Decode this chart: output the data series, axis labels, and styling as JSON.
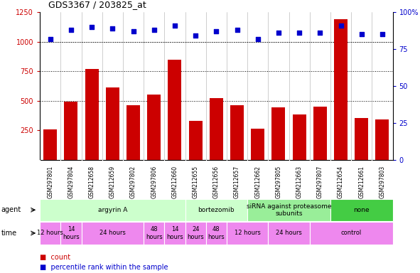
{
  "title": "GDS3367 / 203825_at",
  "samples": [
    "GSM297801",
    "GSM297804",
    "GSM212658",
    "GSM212659",
    "GSM297802",
    "GSM297806",
    "GSM212660",
    "GSM212655",
    "GSM212656",
    "GSM212657",
    "GSM212662",
    "GSM297805",
    "GSM212663",
    "GSM297807",
    "GSM212654",
    "GSM212661",
    "GSM297803"
  ],
  "counts": [
    255,
    490,
    770,
    615,
    465,
    555,
    845,
    330,
    520,
    460,
    265,
    445,
    385,
    450,
    1190,
    355,
    340
  ],
  "percentiles": [
    82,
    88,
    90,
    89,
    87,
    88,
    91,
    84,
    87,
    88,
    82,
    86,
    86,
    86,
    91,
    85,
    85
  ],
  "bar_color": "#cc0000",
  "dot_color": "#0000cc",
  "ylim_left": [
    0,
    1250
  ],
  "ylim_right": [
    0,
    100
  ],
  "yticks_left": [
    250,
    500,
    750,
    1000,
    1250
  ],
  "yticks_right": [
    0,
    25,
    50,
    75,
    100
  ],
  "grid_values": [
    500,
    750,
    1000
  ],
  "agent_groups": [
    {
      "label": "argyrin A",
      "start": 0,
      "end": 7,
      "color": "#ccffcc"
    },
    {
      "label": "bortezomib",
      "start": 7,
      "end": 10,
      "color": "#ccffcc"
    },
    {
      "label": "siRNA against proteasome\nsubunits",
      "start": 10,
      "end": 14,
      "color": "#99ee99"
    },
    {
      "label": "none",
      "start": 14,
      "end": 17,
      "color": "#44cc44"
    }
  ],
  "time_groups": [
    {
      "label": "12 hours",
      "start": 0,
      "end": 1,
      "color": "#ee88ee"
    },
    {
      "label": "14\nhours",
      "start": 1,
      "end": 2,
      "color": "#ee88ee"
    },
    {
      "label": "24 hours",
      "start": 2,
      "end": 5,
      "color": "#ee88ee"
    },
    {
      "label": "48\nhours",
      "start": 5,
      "end": 6,
      "color": "#ee88ee"
    },
    {
      "label": "14\nhours",
      "start": 6,
      "end": 7,
      "color": "#ee88ee"
    },
    {
      "label": "24\nhours",
      "start": 7,
      "end": 8,
      "color": "#ee88ee"
    },
    {
      "label": "48\nhours",
      "start": 8,
      "end": 9,
      "color": "#ee88ee"
    },
    {
      "label": "12 hours",
      "start": 9,
      "end": 11,
      "color": "#ee88ee"
    },
    {
      "label": "24 hours",
      "start": 11,
      "end": 13,
      "color": "#ee88ee"
    },
    {
      "label": "control",
      "start": 13,
      "end": 17,
      "color": "#ee88ee"
    }
  ],
  "legend_items": [
    {
      "label": "count",
      "color": "#cc0000",
      "marker": "s"
    },
    {
      "label": "percentile rank within the sample",
      "color": "#0000cc",
      "marker": "s"
    }
  ],
  "sample_bg_color": "#d8d8d8",
  "plot_bg_color": "#ffffff",
  "fig_bg_color": "#ffffff"
}
